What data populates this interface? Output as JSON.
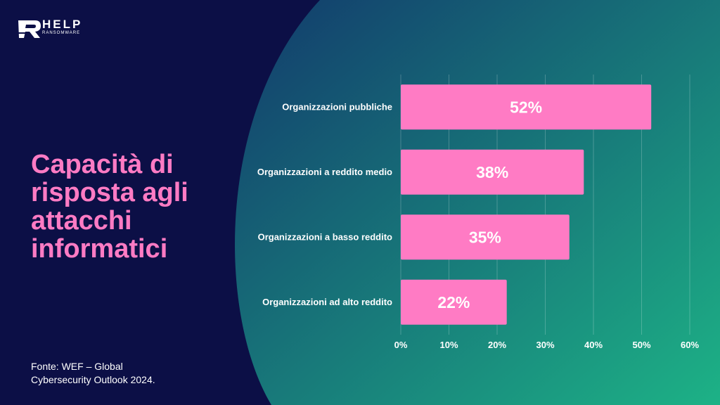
{
  "brand": {
    "name": "HELP",
    "tagline": "RANSOMWARE"
  },
  "title": "Capacità di risposta agli attacchi informatici",
  "source": "Fonte: WEF – Global Cybersecurity Outlook 2024.",
  "colors": {
    "background_left": "#0c0f46",
    "gradient_start": "#123a6c",
    "gradient_end": "#1db286",
    "bar": "#ff7bc4",
    "title": "#ff7bc4",
    "text": "#ffffff"
  },
  "chart_data": {
    "type": "bar",
    "orientation": "horizontal",
    "categories": [
      "Organizzazioni pubbliche",
      "Organizzazioni a reddito medio",
      "Organizzazioni a basso reddito",
      "Organizzazioni ad alto reddito"
    ],
    "values": [
      52,
      38,
      35,
      22
    ],
    "data_labels": [
      "52%",
      "38%",
      "35%",
      "22%"
    ],
    "xlim": [
      0,
      60
    ],
    "x_ticks": [
      0,
      10,
      20,
      30,
      40,
      50,
      60
    ],
    "x_tick_labels": [
      "0%",
      "10%",
      "20%",
      "30%",
      "40%",
      "50%",
      "60%"
    ],
    "grid": true,
    "legend": false
  }
}
